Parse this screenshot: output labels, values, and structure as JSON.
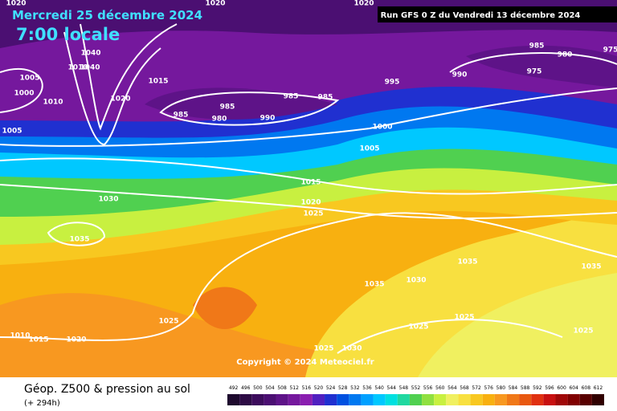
{
  "header": {
    "date": "Mercredi 25 décembre 2024",
    "time": "7:00 locale",
    "run": "Run GFS 0 Z du Vendredi 13 décembre 2024"
  },
  "isobar_labels": [
    "1020",
    "1020",
    "1020",
    "1040",
    "1010",
    "1040",
    "1005",
    "1000",
    "1010",
    "1020",
    "1015",
    "985",
    "980",
    "985",
    "990",
    "985",
    "985",
    "995",
    "990",
    "985",
    "980",
    "975",
    "975",
    "1000",
    "1005",
    "1005",
    "1015",
    "1020",
    "1025",
    "1030",
    "1035",
    "1035",
    "1035",
    "1035",
    "1030",
    "1025",
    "1025",
    "1025",
    "1025",
    "1010",
    "1015",
    "1020",
    "1025",
    "1030"
  ],
  "copyright": "Copyright © 2024 Meteociel.fr",
  "footer": {
    "title": "Géop. Z500 & pression au sol",
    "lead": "(+ 294h)"
  },
  "scale": [
    {
      "value": 492,
      "color": "#1e0a2e"
    },
    {
      "value": 496,
      "color": "#2d0b45"
    },
    {
      "value": 500,
      "color": "#3c0c5c"
    },
    {
      "value": 504,
      "color": "#4b0f72"
    },
    {
      "value": 508,
      "color": "#5e1388"
    },
    {
      "value": 512,
      "color": "#75189d"
    },
    {
      "value": 516,
      "color": "#8a1eb0"
    },
    {
      "value": 520,
      "color": "#5020c0"
    },
    {
      "value": 524,
      "color": "#2030d0"
    },
    {
      "value": 528,
      "color": "#0050e0"
    },
    {
      "value": 532,
      "color": "#0078f0"
    },
    {
      "value": 536,
      "color": "#00a0ff"
    },
    {
      "value": 540,
      "color": "#00c8ff"
    },
    {
      "value": 544,
      "color": "#00e0e0"
    },
    {
      "value": 548,
      "color": "#20d8a0"
    },
    {
      "value": 552,
      "color": "#50d050"
    },
    {
      "value": 556,
      "color": "#90e040"
    },
    {
      "value": 560,
      "color": "#c8f040"
    },
    {
      "value": 564,
      "color": "#f0f060"
    },
    {
      "value": 568,
      "color": "#f8e040"
    },
    {
      "value": 572,
      "color": "#f8c820"
    },
    {
      "value": 576,
      "color": "#f8b010"
    },
    {
      "value": 580,
      "color": "#f89820"
    },
    {
      "value": 584,
      "color": "#f07818"
    },
    {
      "value": 588,
      "color": "#e85810"
    },
    {
      "value": 592,
      "color": "#e03010"
    },
    {
      "value": 596,
      "color": "#c81010"
    },
    {
      "value": 600,
      "color": "#a00808"
    },
    {
      "value": 604,
      "color": "#800000"
    },
    {
      "value": 608,
      "color": "#580000"
    },
    {
      "value": 612,
      "color": "#300000"
    }
  ]
}
